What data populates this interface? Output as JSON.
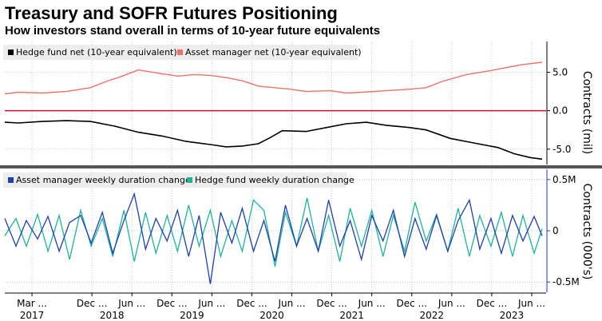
{
  "title": "Treasury and SOFR Futures Positioning",
  "subtitle": "How investors stand overall in terms of 10-year future equivalents",
  "colors": {
    "hedge_net": "#000000",
    "asset_net": "#f07168",
    "zero_line": "#c8102e",
    "asset_weekly": "#1f3fae",
    "hedge_weekly": "#1fb39a",
    "divider": "#555555",
    "legend_bg": "#ededed",
    "grid": "#bbbbbb"
  },
  "chart_data": [
    {
      "type": "line",
      "ylabel": "Contracts (mil)",
      "ylim": [
        -7,
        9
      ],
      "yticks": [
        5.0,
        0.0,
        -5.0
      ],
      "ytick_labels": [
        "5.0",
        "0.0",
        "-5.0"
      ],
      "grid": true,
      "legend_position": "top-left",
      "x_range": [
        2016.83,
        2023.6
      ],
      "series": [
        {
          "name": "Hedge fund net (10-year equivalent)",
          "x": [
            2016.83,
            2017.0,
            2017.3,
            2017.6,
            2017.9,
            2018.2,
            2018.5,
            2018.8,
            2019.1,
            2019.4,
            2019.6,
            2019.8,
            2020.0,
            2020.15,
            2020.3,
            2020.6,
            2020.9,
            2021.1,
            2021.35,
            2021.6,
            2021.9,
            2022.1,
            2022.4,
            2022.7,
            2023.0,
            2023.2,
            2023.4,
            2023.55
          ],
          "y": [
            -1.5,
            -1.6,
            -1.4,
            -1.3,
            -1.4,
            -2.0,
            -2.8,
            -3.3,
            -4.0,
            -4.4,
            -4.7,
            -4.6,
            -4.3,
            -3.5,
            -2.6,
            -2.7,
            -2.1,
            -1.7,
            -1.5,
            -1.9,
            -2.2,
            -2.5,
            -3.6,
            -4.2,
            -4.8,
            -5.6,
            -6.1,
            -6.3
          ]
        },
        {
          "name": "Asset manager net (10-year equivalent)",
          "x": [
            2016.83,
            2017.0,
            2017.3,
            2017.6,
            2017.9,
            2018.1,
            2018.3,
            2018.5,
            2018.8,
            2019.0,
            2019.2,
            2019.4,
            2019.6,
            2019.8,
            2020.0,
            2020.2,
            2020.4,
            2020.6,
            2020.9,
            2021.1,
            2021.3,
            2021.6,
            2021.9,
            2022.1,
            2022.3,
            2022.6,
            2022.9,
            2023.1,
            2023.3,
            2023.55
          ],
          "y": [
            2.2,
            2.4,
            2.3,
            2.5,
            3.0,
            3.8,
            4.5,
            5.3,
            4.8,
            4.5,
            4.7,
            4.6,
            4.3,
            3.9,
            3.2,
            3.0,
            2.8,
            2.5,
            2.6,
            2.3,
            2.4,
            2.6,
            2.8,
            3.0,
            3.8,
            4.7,
            5.2,
            5.6,
            6.0,
            6.3
          ]
        }
      ]
    },
    {
      "type": "line",
      "ylabel": "Contracts (000's)",
      "ylim": [
        -0.6,
        0.6
      ],
      "yticks": [
        0.5,
        0,
        -0.5
      ],
      "ytick_labels": [
        "0.5M",
        "0",
        "-0.5M"
      ],
      "grid": true,
      "legend_position": "top-left",
      "x_range": [
        2016.83,
        2023.6
      ],
      "series": [
        {
          "name": "Asset manager weekly duration change",
          "x": [
            2016.83,
            2016.97,
            2017.1,
            2017.24,
            2017.37,
            2017.51,
            2017.64,
            2017.78,
            2017.91,
            2018.05,
            2018.18,
            2018.32,
            2018.45,
            2018.59,
            2018.72,
            2018.86,
            2018.99,
            2019.13,
            2019.26,
            2019.4,
            2019.53,
            2019.67,
            2019.8,
            2019.94,
            2020.07,
            2020.21,
            2020.34,
            2020.48,
            2020.61,
            2020.75,
            2020.88,
            2021.02,
            2021.15,
            2021.29,
            2021.42,
            2021.56,
            2021.69,
            2021.83,
            2021.96,
            2022.1,
            2022.23,
            2022.37,
            2022.5,
            2022.64,
            2022.77,
            2022.91,
            2023.04,
            2023.18,
            2023.31,
            2023.45,
            2023.55
          ],
          "y": [
            0.12,
            -0.15,
            0.1,
            -0.08,
            0.14,
            -0.2,
            0.08,
            0.15,
            -0.12,
            0.18,
            -0.22,
            0.1,
            0.36,
            -0.18,
            0.12,
            -0.1,
            0.2,
            -0.25,
            0.15,
            -0.52,
            0.18,
            -0.12,
            0.22,
            -0.2,
            0.1,
            -0.3,
            0.25,
            -0.15,
            0.12,
            -0.2,
            0.3,
            -0.15,
            0.1,
            -0.28,
            0.15,
            -0.1,
            0.2,
            -0.25,
            0.12,
            -0.18,
            0.15,
            -0.2,
            0.1,
            0.3,
            -0.18,
            0.12,
            -0.22,
            0.15,
            -0.1,
            0.14,
            -0.05
          ]
        },
        {
          "name": "Hedge fund weekly duration change",
          "x": [
            2016.83,
            2016.97,
            2017.1,
            2017.24,
            2017.37,
            2017.51,
            2017.64,
            2017.78,
            2017.91,
            2018.05,
            2018.18,
            2018.32,
            2018.45,
            2018.59,
            2018.72,
            2018.86,
            2018.99,
            2019.13,
            2019.26,
            2019.4,
            2019.53,
            2019.67,
            2019.8,
            2019.94,
            2020.07,
            2020.21,
            2020.34,
            2020.48,
            2020.61,
            2020.75,
            2020.88,
            2021.02,
            2021.15,
            2021.29,
            2021.42,
            2021.56,
            2021.69,
            2021.83,
            2021.96,
            2022.1,
            2022.23,
            2022.37,
            2022.5,
            2022.64,
            2022.77,
            2022.91,
            2023.04,
            2023.18,
            2023.31,
            2023.45,
            2023.55
          ],
          "y": [
            -0.05,
            0.12,
            -0.15,
            0.16,
            -0.2,
            0.15,
            -0.28,
            0.2,
            -0.15,
            0.12,
            -0.25,
            0.2,
            -0.3,
            0.18,
            -0.22,
            0.15,
            -0.2,
            0.25,
            -0.15,
            0.2,
            -0.25,
            0.1,
            -0.2,
            0.3,
            0.2,
            -0.35,
            0.18,
            -0.15,
            0.32,
            -0.2,
            0.15,
            -0.3,
            0.22,
            -0.15,
            0.2,
            -0.25,
            0.15,
            -0.2,
            0.28,
            -0.1,
            0.16,
            -0.2,
            0.22,
            -0.25,
            0.15,
            -0.15,
            0.18,
            -0.25,
            0.15,
            -0.22,
            0.02
          ]
        }
      ]
    }
  ],
  "x_axis": {
    "ticks": [
      {
        "label": "Mar ...",
        "x": 2017.17
      },
      {
        "label": "Dec ...",
        "x": 2017.92
      },
      {
        "label": "Jun ...",
        "x": 2018.42
      },
      {
        "label": "Dec ...",
        "x": 2018.92
      },
      {
        "label": "Jun ...",
        "x": 2019.42
      },
      {
        "label": "Dec ...",
        "x": 2019.92
      },
      {
        "label": "Jun ...",
        "x": 2020.42
      },
      {
        "label": "Dec ...",
        "x": 2020.92
      },
      {
        "label": "Jun ...",
        "x": 2021.42
      },
      {
        "label": "Dec ...",
        "x": 2021.92
      },
      {
        "label": "Jun ...",
        "x": 2022.42
      },
      {
        "label": "Dec ...",
        "x": 2022.92
      },
      {
        "label": "Jun ...",
        "x": 2023.42
      }
    ],
    "years": [
      {
        "label": "2017",
        "x": 2017.17
      },
      {
        "label": "2018",
        "x": 2018.17
      },
      {
        "label": "2019",
        "x": 2019.17
      },
      {
        "label": "2020",
        "x": 2020.17
      },
      {
        "label": "2021",
        "x": 2021.17
      },
      {
        "label": "2022",
        "x": 2022.17
      },
      {
        "label": "2023",
        "x": 2023.17
      }
    ]
  }
}
